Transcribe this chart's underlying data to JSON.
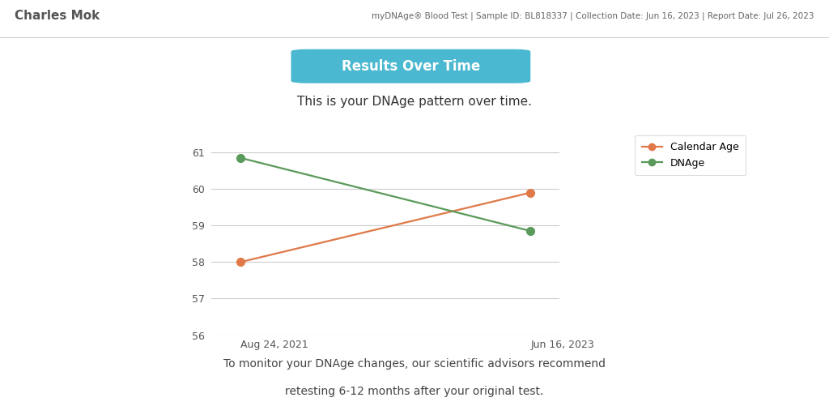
{
  "header_bg": "#a8d4e6",
  "header_name": "Charles Mok",
  "header_info": "myDNAge® Blood Test | Sample ID: BL818337 | Collection Date: Jun 16, 2023 | Report Date: Jul 26, 2023",
  "title_text": "Results Over Time",
  "title_bg": "#4ab8d0",
  "subtitle": "This is your DNAge pattern over time.",
  "x_labels": [
    "Aug 24, 2021",
    "Jun 16, 2023"
  ],
  "x_positions": [
    0,
    1
  ],
  "calendar_age_values": [
    58.0,
    59.9
  ],
  "dna_age_values": [
    60.85,
    58.85
  ],
  "ylim": [
    56,
    61.5
  ],
  "yticks": [
    56,
    57,
    58,
    59,
    60,
    61
  ],
  "calendar_color": "#e07848",
  "dna_color": "#5a9a5a",
  "footer_line1": "To monitor your DNAge changes, our scientific advisors recommend",
  "footer_line2": "retesting 6-12 months after your original test.",
  "bg_color": "#ffffff",
  "grid_color": "#cccccc",
  "header_name_color": "#555555",
  "header_info_color": "#666666",
  "subtitle_color": "#333333",
  "footer_color": "#444444",
  "sep_color": "#cccccc"
}
